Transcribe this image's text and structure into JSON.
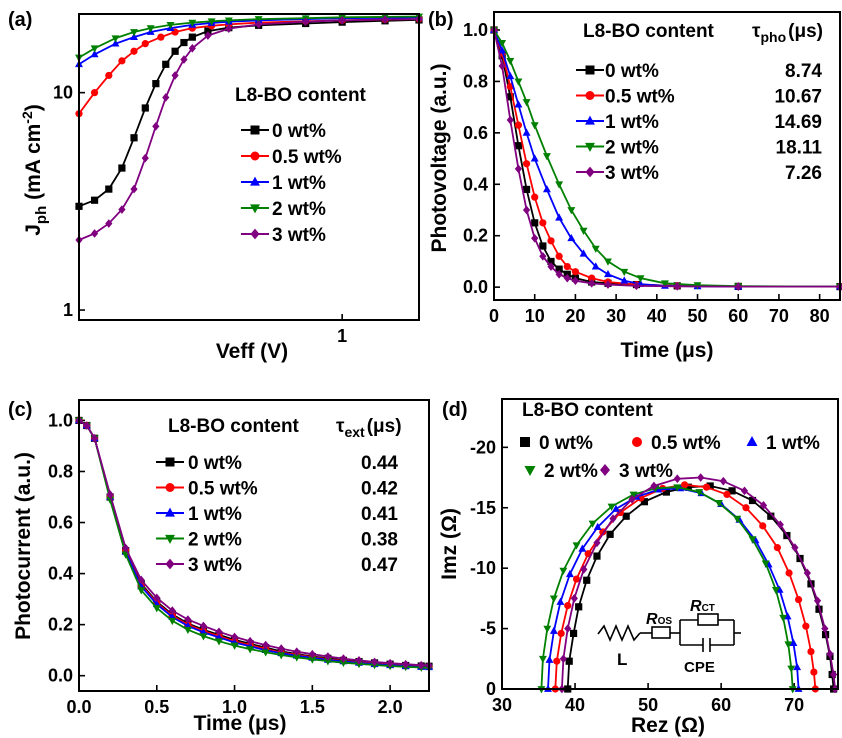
{
  "panels": [
    {
      "id": "a",
      "label": "(a)",
      "xlabel": "Veff (V)",
      "ylabel_main": "J",
      "ylabel_sub": "ph",
      "ylabel_rest": " (mA cm",
      "ylabel_sup": "-2",
      "ylabel_end": ")",
      "legend_title": "L8-BO content",
      "legend_entries": [
        "0 wt%",
        "0.5 wt%",
        "1 wt%",
        "2 wt%",
        "3 wt%"
      ],
      "xticks": [
        "1"
      ],
      "yticks": [
        "1",
        "10"
      ]
    },
    {
      "id": "b",
      "label": "(b)",
      "xlabel": "Time (μs)",
      "ylabel": "Photovoltage (a.u.)",
      "legend_title": "L8-BO content",
      "tau_symbol": "τ",
      "tau_sub": "pho",
      "tau_unit": "(μs)",
      "legend_entries": [
        "0 wt%",
        "0.5 wt%",
        "1 wt%",
        "2 wt%",
        "3 wt%"
      ],
      "tau_values": [
        "8.74",
        "10.67",
        "14.69",
        "18.11",
        "7.26"
      ],
      "xticks": [
        "0",
        "10",
        "20",
        "30",
        "40",
        "50",
        "60",
        "70",
        "80"
      ],
      "yticks": [
        "0.0",
        "0.2",
        "0.4",
        "0.6",
        "0.8",
        "1.0"
      ]
    },
    {
      "id": "c",
      "label": "(c)",
      "xlabel": "Time (μs)",
      "ylabel": "Photocurrent (a.u.)",
      "legend_title": "L8-BO content",
      "tau_symbol": "τ",
      "tau_sub": "ext",
      "tau_unit": "(μs)",
      "legend_entries": [
        "0 wt%",
        "0.5 wt%",
        "1 wt%",
        "2 wt%",
        "3 wt%"
      ],
      "tau_values": [
        "0.44",
        "0.42",
        "0.41",
        "0.38",
        "0.47"
      ],
      "xticks": [
        "0.0",
        "0.5",
        "1.0",
        "1.5",
        "2.0"
      ],
      "yticks": [
        "0.0",
        "0.2",
        "0.4",
        "0.6",
        "0.8",
        "1.0"
      ]
    },
    {
      "id": "d",
      "label": "(d)",
      "xlabel": "Rez (Ω)",
      "ylabel": "Imz (Ω)",
      "legend_title": "L8-BO content",
      "legend_entries": [
        "0 wt%",
        "0.5 wt%",
        "1 wt%",
        "2 wt%",
        "3 wt%"
      ],
      "xticks": [
        "30",
        "40",
        "50",
        "60",
        "70"
      ],
      "yticks": [
        "0",
        "-5",
        "-10",
        "-15",
        "-20"
      ],
      "circuit": {
        "L": "L",
        "Ros": "R",
        "Ros_sub": "OS",
        "Rct": "R",
        "Rct_sub": "CT",
        "cpe": "CPE"
      }
    }
  ],
  "series_colors": [
    "#000000",
    "#ff0000",
    "#0000ff",
    "#008000",
    "#800080"
  ],
  "series_markers": [
    "square",
    "circle",
    "triangle-up",
    "triangle-down",
    "diamond"
  ],
  "chart_data": [
    {
      "type": "line",
      "panel": "a",
      "xscale": "log",
      "yscale": "log",
      "xlim": [
        0.2,
        1.6
      ],
      "ylim": [
        0.9,
        23
      ],
      "series": [
        {
          "name": "0 wt%",
          "x": [
            0.2,
            0.22,
            0.24,
            0.26,
            0.28,
            0.3,
            0.32,
            0.34,
            0.36,
            0.38,
            0.4,
            0.44,
            0.5,
            0.6,
            0.8,
            1.0,
            1.3,
            1.6
          ],
          "y": [
            3.0,
            3.2,
            3.6,
            4.5,
            6.2,
            8.5,
            11.0,
            13.5,
            15.5,
            17.0,
            18.0,
            19.2,
            19.9,
            20.4,
            20.8,
            21.1,
            21.4,
            21.6
          ]
        },
        {
          "name": "0.5 wt%",
          "x": [
            0.2,
            0.22,
            0.24,
            0.26,
            0.28,
            0.3,
            0.33,
            0.36,
            0.4,
            0.45,
            0.5,
            0.6,
            0.8,
            1.0,
            1.3,
            1.6
          ],
          "y": [
            8.0,
            10.0,
            12.0,
            14.0,
            15.5,
            16.8,
            18.0,
            19.0,
            19.8,
            20.3,
            20.6,
            21.0,
            21.3,
            21.5,
            21.7,
            21.8
          ]
        },
        {
          "name": "1 wt%",
          "x": [
            0.2,
            0.22,
            0.25,
            0.28,
            0.31,
            0.35,
            0.4,
            0.45,
            0.5,
            0.6,
            0.8,
            1.0,
            1.3,
            1.6
          ],
          "y": [
            13.5,
            15.0,
            16.8,
            18.0,
            19.0,
            19.8,
            20.5,
            20.9,
            21.2,
            21.5,
            21.8,
            22.0,
            22.1,
            22.2
          ]
        },
        {
          "name": "2 wt%",
          "x": [
            0.2,
            0.22,
            0.25,
            0.28,
            0.31,
            0.35,
            0.4,
            0.45,
            0.5,
            0.6,
            0.8,
            1.0,
            1.3,
            1.6
          ],
          "y": [
            14.5,
            16.0,
            17.8,
            19.0,
            19.8,
            20.5,
            21.0,
            21.3,
            21.5,
            21.8,
            22.0,
            22.2,
            22.3,
            22.4
          ]
        },
        {
          "name": "3 wt%",
          "x": [
            0.2,
            0.22,
            0.24,
            0.26,
            0.28,
            0.3,
            0.32,
            0.34,
            0.36,
            0.38,
            0.4,
            0.44,
            0.5,
            0.6,
            0.8,
            1.0,
            1.3,
            1.6
          ],
          "y": [
            2.1,
            2.25,
            2.5,
            2.9,
            3.6,
            5.0,
            7.0,
            9.5,
            12.0,
            14.2,
            16.0,
            18.3,
            19.7,
            20.6,
            21.2,
            21.5,
            21.7,
            21.8
          ]
        }
      ]
    },
    {
      "type": "line",
      "panel": "b",
      "xlim": [
        0,
        85
      ],
      "ylim": [
        -0.05,
        1.07
      ],
      "series": [
        {
          "name": "0 wt%",
          "x": [
            0,
            2,
            4,
            6,
            8,
            10,
            12,
            14,
            16,
            18,
            20,
            24,
            28,
            35,
            45,
            60,
            85
          ],
          "y": [
            1.0,
            0.9,
            0.74,
            0.55,
            0.38,
            0.25,
            0.16,
            0.1,
            0.07,
            0.05,
            0.035,
            0.02,
            0.015,
            0.01,
            0.005,
            0.003,
            0.002
          ]
        },
        {
          "name": "0.5 wt%",
          "x": [
            0,
            2,
            4,
            6,
            8,
            10,
            12,
            14,
            16,
            18,
            20,
            24,
            28,
            35,
            45,
            60,
            85
          ],
          "y": [
            1.0,
            0.91,
            0.78,
            0.63,
            0.48,
            0.35,
            0.25,
            0.18,
            0.12,
            0.08,
            0.06,
            0.035,
            0.02,
            0.01,
            0.005,
            0.003,
            0.002
          ]
        },
        {
          "name": "1 wt%",
          "x": [
            0,
            2,
            4,
            6,
            8,
            10,
            13,
            16,
            19,
            22,
            25,
            28,
            32,
            36,
            42,
            50,
            60,
            85
          ],
          "y": [
            1.0,
            0.92,
            0.82,
            0.71,
            0.6,
            0.5,
            0.38,
            0.27,
            0.19,
            0.13,
            0.08,
            0.05,
            0.025,
            0.012,
            0.005,
            0.003,
            0.002,
            0.002
          ]
        },
        {
          "name": "2 wt%",
          "x": [
            0,
            2,
            4,
            6,
            8,
            10,
            13,
            16,
            19,
            22,
            25,
            28,
            32,
            36,
            42,
            50,
            60,
            85
          ],
          "y": [
            1.0,
            0.95,
            0.88,
            0.8,
            0.72,
            0.63,
            0.51,
            0.4,
            0.3,
            0.22,
            0.15,
            0.1,
            0.06,
            0.035,
            0.015,
            0.008,
            0.004,
            0.002
          ]
        },
        {
          "name": "3 wt%",
          "x": [
            0,
            2,
            4,
            6,
            8,
            10,
            12,
            14,
            16,
            18,
            20,
            24,
            28,
            35,
            45,
            60,
            85
          ],
          "y": [
            1.0,
            0.86,
            0.65,
            0.46,
            0.3,
            0.19,
            0.12,
            0.08,
            0.05,
            0.035,
            0.025,
            0.015,
            0.01,
            0.005,
            0.003,
            0.002,
            0.002
          ]
        }
      ]
    },
    {
      "type": "line",
      "panel": "c",
      "xlim": [
        0,
        2.25
      ],
      "ylim": [
        -0.06,
        1.08
      ],
      "series": [
        {
          "name": "0 wt%",
          "x": [
            0,
            0.05,
            0.1,
            0.2,
            0.3,
            0.4,
            0.5,
            0.6,
            0.7,
            0.8,
            0.9,
            1.0,
            1.1,
            1.2,
            1.3,
            1.4,
            1.5,
            1.6,
            1.7,
            1.8,
            1.9,
            2.0,
            2.1,
            2.2,
            2.25
          ],
          "y": [
            1.0,
            0.98,
            0.93,
            0.7,
            0.49,
            0.36,
            0.29,
            0.24,
            0.205,
            0.18,
            0.16,
            0.14,
            0.125,
            0.11,
            0.095,
            0.085,
            0.075,
            0.068,
            0.06,
            0.055,
            0.05,
            0.045,
            0.04,
            0.038,
            0.037
          ]
        },
        {
          "name": "0.5 wt%",
          "x": [
            0,
            0.05,
            0.1,
            0.2,
            0.3,
            0.4,
            0.5,
            0.6,
            0.7,
            0.8,
            0.9,
            1.0,
            1.1,
            1.2,
            1.3,
            1.4,
            1.5,
            1.6,
            1.7,
            1.8,
            1.9,
            2.0,
            2.1,
            2.2,
            2.25
          ],
          "y": [
            1.0,
            0.98,
            0.93,
            0.7,
            0.49,
            0.355,
            0.285,
            0.235,
            0.2,
            0.175,
            0.155,
            0.135,
            0.12,
            0.105,
            0.09,
            0.082,
            0.072,
            0.065,
            0.058,
            0.052,
            0.047,
            0.043,
            0.039,
            0.036,
            0.035
          ]
        },
        {
          "name": "1 wt%",
          "x": [
            0,
            0.05,
            0.1,
            0.2,
            0.3,
            0.4,
            0.5,
            0.6,
            0.7,
            0.8,
            0.9,
            1.0,
            1.1,
            1.2,
            1.3,
            1.4,
            1.5,
            1.6,
            1.7,
            1.8,
            1.9,
            2.0,
            2.1,
            2.2,
            2.25
          ],
          "y": [
            1.0,
            0.98,
            0.93,
            0.7,
            0.485,
            0.35,
            0.28,
            0.23,
            0.195,
            0.17,
            0.15,
            0.13,
            0.115,
            0.1,
            0.088,
            0.078,
            0.07,
            0.062,
            0.056,
            0.05,
            0.045,
            0.041,
            0.037,
            0.034,
            0.033
          ]
        },
        {
          "name": "2 wt%",
          "x": [
            0,
            0.05,
            0.1,
            0.2,
            0.3,
            0.4,
            0.5,
            0.6,
            0.7,
            0.8,
            0.9,
            1.0,
            1.1,
            1.2,
            1.3,
            1.4,
            1.5,
            1.6,
            1.7,
            1.8,
            1.9,
            2.0,
            2.1,
            2.2,
            2.25
          ],
          "y": [
            1.0,
            0.98,
            0.93,
            0.69,
            0.475,
            0.335,
            0.265,
            0.215,
            0.18,
            0.155,
            0.135,
            0.118,
            0.104,
            0.092,
            0.081,
            0.072,
            0.064,
            0.057,
            0.051,
            0.046,
            0.042,
            0.038,
            0.035,
            0.032,
            0.031
          ]
        },
        {
          "name": "3 wt%",
          "x": [
            0,
            0.05,
            0.1,
            0.2,
            0.3,
            0.4,
            0.5,
            0.6,
            0.7,
            0.8,
            0.9,
            1.0,
            1.1,
            1.2,
            1.3,
            1.4,
            1.5,
            1.6,
            1.7,
            1.8,
            1.9,
            2.0,
            2.1,
            2.2,
            2.25
          ],
          "y": [
            1.0,
            0.98,
            0.93,
            0.71,
            0.5,
            0.375,
            0.305,
            0.255,
            0.22,
            0.195,
            0.172,
            0.152,
            0.135,
            0.12,
            0.106,
            0.094,
            0.084,
            0.075,
            0.067,
            0.06,
            0.054,
            0.049,
            0.045,
            0.041,
            0.04
          ]
        }
      ]
    },
    {
      "type": "scatter",
      "panel": "d",
      "xlim": [
        30,
        76
      ],
      "ylim": [
        0,
        -24
      ],
      "series": [
        {
          "name": "0 wt%",
          "x": [
            39.0,
            39.2,
            39.8,
            40.5,
            41.6,
            43.0,
            44.8,
            47.0,
            49.5,
            52.5,
            55.5,
            58.5,
            61.5,
            64.3,
            66.8,
            69.0,
            70.8,
            72.3,
            73.4,
            74.3,
            74.9,
            75.2,
            75.4
          ],
          "y": [
            0,
            -2.3,
            -4.6,
            -6.8,
            -9.0,
            -11.0,
            -12.8,
            -14.3,
            -15.5,
            -16.3,
            -16.7,
            -16.8,
            -16.4,
            -15.6,
            -14.3,
            -12.7,
            -10.8,
            -8.7,
            -6.6,
            -4.5,
            -2.7,
            -1.2,
            0
          ]
        },
        {
          "name": "0.5 wt%",
          "x": [
            37.3,
            37.5,
            38.1,
            39.0,
            40.2,
            41.8,
            43.8,
            46.2,
            49.0,
            52.0,
            55.0,
            58.0,
            60.8,
            63.4,
            65.7,
            67.7,
            69.3,
            70.6,
            71.6,
            72.3,
            72.7,
            72.9
          ],
          "y": [
            0,
            -2.3,
            -4.6,
            -6.9,
            -9.1,
            -11.2,
            -13.0,
            -14.6,
            -15.8,
            -16.6,
            -16.9,
            -16.7,
            -16.1,
            -15.0,
            -13.5,
            -11.7,
            -9.6,
            -7.4,
            -5.2,
            -3.1,
            -1.4,
            0
          ]
        },
        {
          "name": "1 wt%",
          "x": [
            36.3,
            36.5,
            37.1,
            38.0,
            39.3,
            41.0,
            43.1,
            45.6,
            48.4,
            51.4,
            54.4,
            57.3,
            60.0,
            62.5,
            64.7,
            66.5,
            68.0,
            69.1,
            69.9,
            70.4,
            70.6
          ],
          "y": [
            0,
            -2.4,
            -4.8,
            -7.2,
            -9.5,
            -11.6,
            -13.4,
            -14.9,
            -15.9,
            -16.5,
            -16.6,
            -16.2,
            -15.3,
            -14.0,
            -12.3,
            -10.3,
            -8.2,
            -6.0,
            -3.8,
            -1.8,
            0
          ]
        },
        {
          "name": "2 wt%",
          "x": [
            35.4,
            35.6,
            36.2,
            37.1,
            38.4,
            40.2,
            42.4,
            45.0,
            48.0,
            51.0,
            54.0,
            57.0,
            59.7,
            62.2,
            64.3,
            66.1,
            67.5,
            68.5,
            69.2,
            69.6,
            69.8
          ],
          "y": [
            0,
            -2.5,
            -5.0,
            -7.5,
            -9.8,
            -11.9,
            -13.7,
            -15.1,
            -16.1,
            -16.6,
            -16.7,
            -16.3,
            -15.4,
            -14.1,
            -12.4,
            -10.4,
            -8.2,
            -5.9,
            -3.7,
            -1.7,
            0
          ]
        },
        {
          "name": "3 wt%",
          "x": [
            38.2,
            38.4,
            39.0,
            39.9,
            41.2,
            43.0,
            45.2,
            47.8,
            50.8,
            54.0,
            57.2,
            60.3,
            63.2,
            65.8,
            68.1,
            70.1,
            71.8,
            73.2,
            74.2,
            74.9,
            75.4,
            75.6
          ],
          "y": [
            0,
            -2.5,
            -5.0,
            -7.5,
            -9.9,
            -12.1,
            -14.1,
            -15.7,
            -16.8,
            -17.4,
            -17.5,
            -17.2,
            -16.4,
            -15.2,
            -13.6,
            -11.7,
            -9.6,
            -7.3,
            -5.0,
            -2.9,
            -1.2,
            0
          ]
        }
      ]
    }
  ]
}
